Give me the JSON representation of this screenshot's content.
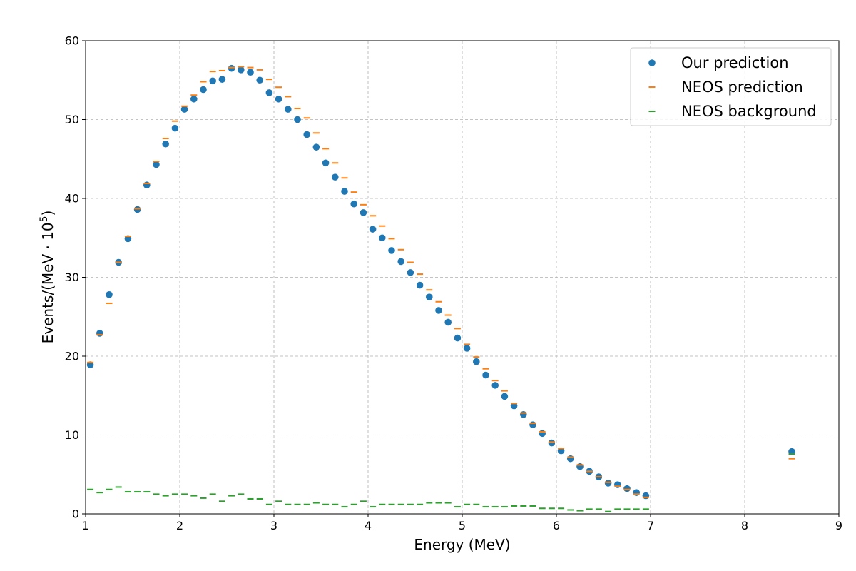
{
  "chart_data": {
    "type": "scatter",
    "xlabel": "Energy (MeV)",
    "ylabel_prefix": "Events/(MeV · 10",
    "ylabel_sup": "5",
    "ylabel_suffix": ")",
    "xlim": [
      1,
      9
    ],
    "ylim": [
      0,
      60
    ],
    "xticks": [
      1,
      2,
      3,
      4,
      5,
      6,
      7,
      8,
      9
    ],
    "yticks": [
      0,
      10,
      20,
      30,
      40,
      50,
      60
    ],
    "grid": true,
    "legend_position": "top-right",
    "series": [
      {
        "name": "Our prediction",
        "marker": "circle",
        "color": "#1f77b4",
        "x": [
          1.05,
          1.15,
          1.25,
          1.35,
          1.45,
          1.55,
          1.65,
          1.75,
          1.85,
          1.95,
          2.05,
          2.15,
          2.25,
          2.35,
          2.45,
          2.55,
          2.65,
          2.75,
          2.85,
          2.95,
          3.05,
          3.15,
          3.25,
          3.35,
          3.45,
          3.55,
          3.65,
          3.75,
          3.85,
          3.95,
          4.05,
          4.15,
          4.25,
          4.35,
          4.45,
          4.55,
          4.65,
          4.75,
          4.85,
          4.95,
          5.05,
          5.15,
          5.25,
          5.35,
          5.45,
          5.55,
          5.65,
          5.75,
          5.85,
          5.95,
          6.05,
          6.15,
          6.25,
          6.35,
          6.45,
          6.55,
          6.65,
          6.75,
          6.85,
          6.95,
          8.5
        ],
        "y": [
          18.9,
          22.9,
          27.8,
          31.9,
          34.9,
          38.6,
          41.7,
          44.3,
          46.9,
          48.9,
          51.3,
          52.6,
          53.8,
          54.9,
          55.1,
          56.5,
          56.3,
          56.0,
          55.0,
          53.4,
          52.6,
          51.3,
          50.0,
          48.1,
          46.5,
          44.5,
          42.7,
          40.9,
          39.3,
          38.2,
          36.1,
          35.0,
          33.4,
          32.0,
          30.6,
          29.0,
          27.5,
          25.8,
          24.3,
          22.3,
          21.0,
          19.3,
          17.6,
          16.3,
          14.9,
          13.7,
          12.6,
          11.3,
          10.2,
          9.0,
          8.0,
          7.0,
          6.0,
          5.4,
          4.7,
          3.9,
          3.7,
          3.2,
          2.7,
          2.3,
          7.9
        ]
      },
      {
        "name": "NEOS prediction",
        "marker": "hline",
        "color": "#ff7f0e",
        "x": [
          1.05,
          1.15,
          1.25,
          1.35,
          1.45,
          1.55,
          1.65,
          1.75,
          1.85,
          1.95,
          2.05,
          2.15,
          2.25,
          2.35,
          2.45,
          2.55,
          2.65,
          2.75,
          2.85,
          2.95,
          3.05,
          3.15,
          3.25,
          3.35,
          3.45,
          3.55,
          3.65,
          3.75,
          3.85,
          3.95,
          4.05,
          4.15,
          4.25,
          4.35,
          4.45,
          4.55,
          4.65,
          4.75,
          4.85,
          4.95,
          5.05,
          5.15,
          5.25,
          5.35,
          5.45,
          5.55,
          5.65,
          5.75,
          5.85,
          5.95,
          6.05,
          6.15,
          6.25,
          6.35,
          6.45,
          6.55,
          6.65,
          6.75,
          6.85,
          6.95,
          8.5
        ],
        "y": [
          19.2,
          22.7,
          26.7,
          31.9,
          35.2,
          38.7,
          41.9,
          44.7,
          47.6,
          49.8,
          51.7,
          53.1,
          54.8,
          56.1,
          56.2,
          56.6,
          56.7,
          56.6,
          56.3,
          55.1,
          54.1,
          52.9,
          51.4,
          50.2,
          48.3,
          46.3,
          44.5,
          42.6,
          40.8,
          39.2,
          37.8,
          36.5,
          34.9,
          33.5,
          31.9,
          30.4,
          28.4,
          26.9,
          25.2,
          23.5,
          21.5,
          19.9,
          18.4,
          16.9,
          15.6,
          14.0,
          12.8,
          11.5,
          10.4,
          9.1,
          8.3,
          7.2,
          6.2,
          5.4,
          4.7,
          4.0,
          3.5,
          3.1,
          2.5,
          2.1,
          7.0
        ]
      },
      {
        "name": "NEOS background",
        "marker": "hline",
        "color": "#2ca02c",
        "x": [
          1.05,
          1.15,
          1.25,
          1.35,
          1.45,
          1.55,
          1.65,
          1.75,
          1.85,
          1.95,
          2.05,
          2.15,
          2.25,
          2.35,
          2.45,
          2.55,
          2.65,
          2.75,
          2.85,
          2.95,
          3.05,
          3.15,
          3.25,
          3.35,
          3.45,
          3.55,
          3.65,
          3.75,
          3.85,
          3.95,
          4.05,
          4.15,
          4.25,
          4.35,
          4.45,
          4.55,
          4.65,
          4.75,
          4.85,
          4.95,
          5.05,
          5.15,
          5.25,
          5.35,
          5.45,
          5.55,
          5.65,
          5.75,
          5.85,
          5.95,
          6.05,
          6.15,
          6.25,
          6.35,
          6.45,
          6.55,
          6.65,
          6.75,
          6.85,
          6.95,
          8.5
        ],
        "y": [
          3.1,
          2.7,
          3.1,
          3.4,
          2.8,
          2.8,
          2.8,
          2.5,
          2.3,
          2.5,
          2.5,
          2.3,
          2.0,
          2.5,
          1.6,
          2.3,
          2.5,
          1.9,
          1.9,
          1.2,
          1.6,
          1.2,
          1.2,
          1.2,
          1.4,
          1.2,
          1.2,
          0.9,
          1.2,
          1.6,
          0.9,
          1.2,
          1.2,
          1.2,
          1.2,
          1.2,
          1.4,
          1.4,
          1.4,
          0.9,
          1.2,
          1.2,
          0.9,
          0.9,
          0.9,
          1.0,
          1.0,
          1.0,
          0.7,
          0.7,
          0.7,
          0.5,
          0.4,
          0.6,
          0.6,
          0.3,
          0.6,
          0.6,
          0.6,
          0.6,
          7.6
        ]
      }
    ]
  }
}
